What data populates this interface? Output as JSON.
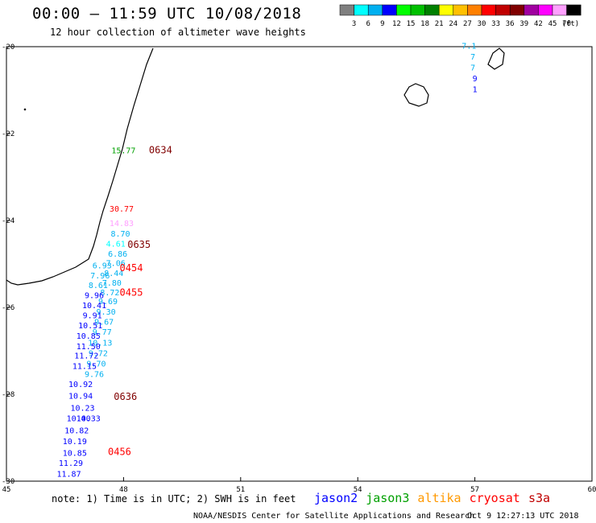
{
  "header": {
    "title": "00:00 – 11:59 UTC 10/08/2018",
    "subtitle": "12 hour collection of altimeter wave heights"
  },
  "legend": {
    "unit": "(ft)",
    "bins": [
      {
        "label": "3",
        "color": "#808080"
      },
      {
        "label": "6",
        "color": "#00ffff"
      },
      {
        "label": "9",
        "color": "#00b0f0"
      },
      {
        "label": "12",
        "color": "#0000ff"
      },
      {
        "label": "15",
        "color": "#00ff00"
      },
      {
        "label": "18",
        "color": "#00c000"
      },
      {
        "label": "21",
        "color": "#008000"
      },
      {
        "label": "24",
        "color": "#ffff00"
      },
      {
        "label": "27",
        "color": "#ffc000"
      },
      {
        "label": "30",
        "color": "#ff8000"
      },
      {
        "label": "33",
        "color": "#ff0000"
      },
      {
        "label": "36",
        "color": "#c00000"
      },
      {
        "label": "39",
        "color": "#800000"
      },
      {
        "label": "42",
        "color": "#a000a0"
      },
      {
        "label": "45",
        "color": "#ff00ff"
      },
      {
        "label": "70",
        "color": "#ffa0ff"
      },
      {
        "label": "",
        "color": "#000000"
      }
    ]
  },
  "footer": {
    "note": "note: 1) Time is in UTC; 2) SWH is in feet",
    "satellites": [
      {
        "name": "jason2",
        "color": "#0000ff"
      },
      {
        "name": "jason3",
        "color": "#00a000"
      },
      {
        "name": "altika",
        "color": "#ff9900"
      },
      {
        "name": "cryosat",
        "color": "#ff0000"
      },
      {
        "name": "s3a",
        "color": "#c00000"
      }
    ],
    "credit": "NOAA/NESDIS Center for Satellite Applications and Research",
    "timestamp": "Oct  9 12:27:13 UTC 2018"
  },
  "chart_data": {
    "type": "scatter",
    "xlim": [
      45,
      60
    ],
    "ylim": [
      -30,
      -20
    ],
    "xticks": [
      "45",
      "48",
      "51",
      "54",
      "57",
      "60"
    ],
    "yticks": [
      "-20",
      "-22",
      "-24",
      "-26",
      "-28",
      "-30"
    ],
    "grid": false,
    "points": [
      {
        "lon": 48.0,
        "lat": -22.45,
        "text": "15.77",
        "color": "#00a000"
      },
      {
        "lon": 47.95,
        "lat": -23.8,
        "text": "30.77",
        "color": "#ff0000"
      },
      {
        "lon": 47.95,
        "lat": -24.13,
        "text": "14.83",
        "color": "#ffa0ff"
      },
      {
        "lon": 47.92,
        "lat": -24.37,
        "text": "8.70",
        "color": "#00b0f0"
      },
      {
        "lon": 47.8,
        "lat": -24.6,
        "text": "4.61",
        "color": "#00ffff"
      },
      {
        "lon": 47.85,
        "lat": -24.83,
        "text": "6.86",
        "color": "#00b0f0"
      },
      {
        "lon": 47.8,
        "lat": -25.05,
        "text": "7.06",
        "color": "#00b0f0"
      },
      {
        "lon": 47.45,
        "lat": -25.1,
        "text": "6.93",
        "color": "#00b0f0"
      },
      {
        "lon": 47.75,
        "lat": -25.28,
        "text": "8.44",
        "color": "#00b0f0"
      },
      {
        "lon": 47.4,
        "lat": -25.33,
        "text": "7.96",
        "color": "#00b0f0"
      },
      {
        "lon": 47.7,
        "lat": -25.5,
        "text": "7.80",
        "color": "#00b0f0"
      },
      {
        "lon": 47.35,
        "lat": -25.56,
        "text": "8.61",
        "color": "#00b0f0"
      },
      {
        "lon": 47.65,
        "lat": -25.72,
        "text": "8.72",
        "color": "#00b0f0"
      },
      {
        "lon": 47.25,
        "lat": -25.79,
        "text": "9.96",
        "color": "#0000ff"
      },
      {
        "lon": 47.6,
        "lat": -25.93,
        "text": "9.69",
        "color": "#00b0f0"
      },
      {
        "lon": 47.25,
        "lat": -26.02,
        "text": "10.41",
        "color": "#0000ff"
      },
      {
        "lon": 47.55,
        "lat": -26.17,
        "text": "9.30",
        "color": "#00b0f0"
      },
      {
        "lon": 47.2,
        "lat": -26.25,
        "text": "9.91",
        "color": "#0000ff"
      },
      {
        "lon": 47.5,
        "lat": -26.4,
        "text": "9.67",
        "color": "#00b0f0"
      },
      {
        "lon": 47.15,
        "lat": -26.48,
        "text": "10.51",
        "color": "#0000ff"
      },
      {
        "lon": 47.45,
        "lat": -26.63,
        "text": "9.77",
        "color": "#00b0f0"
      },
      {
        "lon": 47.1,
        "lat": -26.72,
        "text": "10.85",
        "color": "#0000ff"
      },
      {
        "lon": 47.4,
        "lat": -26.88,
        "text": "10.13",
        "color": "#00b0f0"
      },
      {
        "lon": 47.1,
        "lat": -26.96,
        "text": "11.50",
        "color": "#0000ff"
      },
      {
        "lon": 47.35,
        "lat": -27.12,
        "text": "9.72",
        "color": "#00b0f0"
      },
      {
        "lon": 47.05,
        "lat": -27.18,
        "text": "11.72",
        "color": "#0000ff"
      },
      {
        "lon": 47.3,
        "lat": -27.36,
        "text": "9.70",
        "color": "#00b0f0"
      },
      {
        "lon": 47.0,
        "lat": -27.42,
        "text": "11.15",
        "color": "#0000ff"
      },
      {
        "lon": 47.25,
        "lat": -27.6,
        "text": "9.76",
        "color": "#00b0f0"
      },
      {
        "lon": 46.9,
        "lat": -27.83,
        "text": "10.92",
        "color": "#0000ff"
      },
      {
        "lon": 46.9,
        "lat": -28.1,
        "text": "10.94",
        "color": "#0000ff"
      },
      {
        "lon": 46.95,
        "lat": -28.38,
        "text": "10.23",
        "color": "#0000ff"
      },
      {
        "lon": 46.85,
        "lat": -28.62,
        "text": "10.40",
        "color": "#0000ff"
      },
      {
        "lon": 47.1,
        "lat": -28.62,
        "text": "10.33",
        "color": "#0000ff"
      },
      {
        "lon": 46.8,
        "lat": -28.9,
        "text": "10.82",
        "color": "#0000ff"
      },
      {
        "lon": 46.75,
        "lat": -29.15,
        "text": "10.19",
        "color": "#0000ff"
      },
      {
        "lon": 46.75,
        "lat": -29.42,
        "text": "10.85",
        "color": "#0000ff"
      },
      {
        "lon": 46.65,
        "lat": -29.65,
        "text": "11.29",
        "color": "#0000ff"
      },
      {
        "lon": 46.6,
        "lat": -29.9,
        "text": "11.87",
        "color": "#0000ff"
      },
      {
        "lon": 56.85,
        "lat": -20.05,
        "text": "7.1",
        "color": "#00b0f0"
      },
      {
        "lon": 56.95,
        "lat": -20.3,
        "text": "7",
        "color": "#00b0f0"
      },
      {
        "lon": 56.95,
        "lat": -20.55,
        "text": "7",
        "color": "#00b0f0"
      },
      {
        "lon": 57.0,
        "lat": -20.8,
        "text": "9",
        "color": "#0000ff"
      },
      {
        "lon": 57.0,
        "lat": -21.05,
        "text": "1",
        "color": "#0000ff"
      }
    ],
    "time_labels": [
      {
        "lon": 48.65,
        "lat": -22.45,
        "text": "0634",
        "color": "#800000"
      },
      {
        "lon": 48.1,
        "lat": -24.63,
        "text": "0635",
        "color": "#800000"
      },
      {
        "lon": 47.9,
        "lat": -25.17,
        "text": "0454",
        "color": "#ff0000"
      },
      {
        "lon": 47.9,
        "lat": -25.73,
        "text": "0455",
        "color": "#ff0000"
      },
      {
        "lon": 47.75,
        "lat": -28.13,
        "text": "0636",
        "color": "#800000"
      },
      {
        "lon": 47.6,
        "lat": -29.4,
        "text": "0456",
        "color": "#ff0000"
      }
    ]
  }
}
